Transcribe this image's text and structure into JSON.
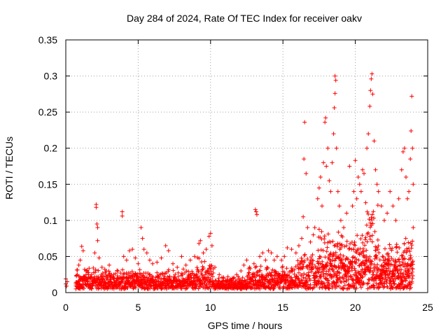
{
  "chart_data": {
    "type": "scatter",
    "title": "Day 284 of 2024, Rate Of TEC Index for receiver oakv",
    "xlabel": "GPS time / hours",
    "ylabel": "ROTI / TECUs",
    "xlim": [
      0,
      25
    ],
    "ylim": [
      0,
      0.35
    ],
    "xticks": [
      0,
      5,
      10,
      15,
      20,
      25
    ],
    "xtick_labels": [
      "0",
      "5",
      "10",
      "15",
      "20",
      "25"
    ],
    "yticks": [
      0,
      0.05,
      0.1,
      0.15,
      0.2,
      0.25,
      0.3,
      0.35
    ],
    "ytick_labels": [
      "0",
      "0.05",
      "0.1",
      "0.15",
      "0.2",
      "0.25",
      "0.3",
      "0.35"
    ],
    "grid": true,
    "marker": "+",
    "series": [
      {
        "name": "ROTI",
        "color": "#ff0000",
        "points": [
          [
            0.0,
            0.019
          ],
          [
            0.0,
            0.012
          ],
          [
            0.05,
            0.009
          ],
          [
            0.1,
            0.015
          ],
          [
            0.7,
            0.012
          ],
          [
            0.8,
            0.025
          ],
          [
            0.9,
            0.038
          ],
          [
            1.0,
            0.045
          ],
          [
            1.1,
            0.064
          ],
          [
            1.2,
            0.058
          ],
          [
            1.3,
            0.032
          ],
          [
            1.5,
            0.028
          ],
          [
            1.7,
            0.022
          ],
          [
            1.9,
            0.034
          ],
          [
            2.0,
            0.055
          ],
          [
            2.1,
            0.122
          ],
          [
            2.1,
            0.118
          ],
          [
            2.15,
            0.095
          ],
          [
            2.2,
            0.09
          ],
          [
            2.2,
            0.072
          ],
          [
            2.3,
            0.048
          ],
          [
            2.5,
            0.035
          ],
          [
            2.8,
            0.03
          ],
          [
            3.0,
            0.038
          ],
          [
            3.3,
            0.025
          ],
          [
            3.6,
            0.03
          ],
          [
            3.9,
            0.112
          ],
          [
            3.9,
            0.106
          ],
          [
            4.0,
            0.05
          ],
          [
            4.2,
            0.045
          ],
          [
            4.4,
            0.058
          ],
          [
            4.6,
            0.06
          ],
          [
            4.8,
            0.048
          ],
          [
            5.0,
            0.04
          ],
          [
            5.2,
            0.09
          ],
          [
            5.3,
            0.075
          ],
          [
            5.4,
            0.06
          ],
          [
            5.6,
            0.055
          ],
          [
            5.8,
            0.045
          ],
          [
            6.0,
            0.04
          ],
          [
            6.3,
            0.042
          ],
          [
            6.6,
            0.048
          ],
          [
            6.9,
            0.065
          ],
          [
            7.1,
            0.058
          ],
          [
            7.4,
            0.04
          ],
          [
            7.7,
            0.035
          ],
          [
            8.0,
            0.05
          ],
          [
            8.3,
            0.038
          ],
          [
            8.6,
            0.045
          ],
          [
            8.9,
            0.05
          ],
          [
            9.2,
            0.068
          ],
          [
            9.3,
            0.072
          ],
          [
            9.5,
            0.055
          ],
          [
            9.7,
            0.06
          ],
          [
            9.9,
            0.078
          ],
          [
            10.0,
            0.082
          ],
          [
            10.1,
            0.065
          ],
          [
            10.3,
            0.035
          ],
          [
            10.6,
            0.025
          ],
          [
            10.9,
            0.02
          ],
          [
            11.2,
            0.022
          ],
          [
            11.5,
            0.02
          ],
          [
            11.8,
            0.025
          ],
          [
            12.1,
            0.03
          ],
          [
            12.3,
            0.038
          ],
          [
            12.5,
            0.045
          ],
          [
            12.7,
            0.035
          ],
          [
            13.0,
            0.04
          ],
          [
            13.1,
            0.115
          ],
          [
            13.15,
            0.112
          ],
          [
            13.2,
            0.108
          ],
          [
            13.4,
            0.05
          ],
          [
            13.6,
            0.055
          ],
          [
            13.8,
            0.045
          ],
          [
            14.0,
            0.058
          ],
          [
            14.2,
            0.055
          ],
          [
            14.4,
            0.045
          ],
          [
            14.6,
            0.05
          ],
          [
            14.9,
            0.045
          ],
          [
            15.1,
            0.05
          ],
          [
            15.3,
            0.062
          ],
          [
            15.6,
            0.06
          ],
          [
            15.9,
            0.055
          ],
          [
            16.1,
            0.065
          ],
          [
            16.3,
            0.075
          ],
          [
            16.4,
            0.105
          ],
          [
            16.45,
            0.185
          ],
          [
            16.5,
            0.236
          ],
          [
            16.6,
            0.165
          ],
          [
            16.7,
            0.09
          ],
          [
            16.9,
            0.07
          ],
          [
            17.1,
            0.08
          ],
          [
            17.2,
            0.09
          ],
          [
            17.4,
            0.13
          ],
          [
            17.5,
            0.145
          ],
          [
            17.6,
            0.16
          ],
          [
            17.7,
            0.12
          ],
          [
            17.8,
            0.18
          ],
          [
            17.9,
            0.236
          ],
          [
            17.95,
            0.242
          ],
          [
            18.0,
            0.175
          ],
          [
            18.1,
            0.2
          ],
          [
            18.2,
            0.155
          ],
          [
            18.3,
            0.14
          ],
          [
            18.4,
            0.18
          ],
          [
            18.5,
            0.22
          ],
          [
            18.55,
            0.256
          ],
          [
            18.6,
            0.276
          ],
          [
            18.6,
            0.3
          ],
          [
            18.65,
            0.294
          ],
          [
            18.7,
            0.2
          ],
          [
            18.8,
            0.14
          ],
          [
            18.9,
            0.12
          ],
          [
            19.0,
            0.1
          ],
          [
            19.2,
            0.09
          ],
          [
            19.4,
            0.11
          ],
          [
            19.6,
            0.175
          ],
          [
            19.8,
            0.12
          ],
          [
            19.9,
            0.14
          ],
          [
            20.0,
            0.183
          ],
          [
            20.1,
            0.13
          ],
          [
            20.2,
            0.16
          ],
          [
            20.3,
            0.15
          ],
          [
            20.4,
            0.14
          ],
          [
            20.5,
            0.17
          ],
          [
            20.6,
            0.165
          ],
          [
            20.8,
            0.2
          ],
          [
            20.9,
            0.22
          ],
          [
            21.0,
            0.258
          ],
          [
            21.05,
            0.28
          ],
          [
            21.1,
            0.296
          ],
          [
            21.15,
            0.303
          ],
          [
            21.2,
            0.275
          ],
          [
            21.3,
            0.21
          ],
          [
            21.4,
            0.17
          ],
          [
            21.5,
            0.15
          ],
          [
            21.6,
            0.14
          ],
          [
            21.8,
            0.12
          ],
          [
            22.0,
            0.1
          ],
          [
            22.2,
            0.11
          ],
          [
            22.4,
            0.14
          ],
          [
            22.6,
            0.12
          ],
          [
            22.8,
            0.1
          ],
          [
            23.0,
            0.13
          ],
          [
            23.2,
            0.17
          ],
          [
            23.3,
            0.195
          ],
          [
            23.4,
            0.2
          ],
          [
            23.5,
            0.16
          ],
          [
            23.6,
            0.13
          ],
          [
            23.7,
            0.14
          ],
          [
            23.8,
            0.185
          ],
          [
            23.85,
            0.224
          ],
          [
            23.9,
            0.272
          ],
          [
            23.95,
            0.2
          ],
          [
            24.0,
            0.15
          ],
          [
            24.0,
            0.09
          ]
        ]
      }
    ]
  }
}
